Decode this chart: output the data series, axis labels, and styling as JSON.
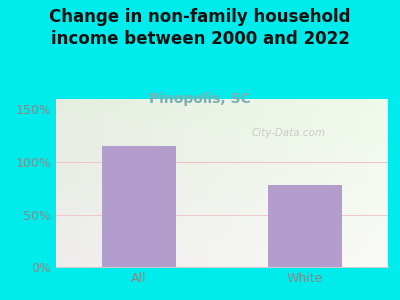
{
  "title": "Change in non-family household\nincome between 2000 and 2022",
  "subtitle": "Pinopolis, SC",
  "categories": [
    "All",
    "White"
  ],
  "values": [
    115,
    78
  ],
  "bar_color": "#b39dcc",
  "figure_bg": "#00ecec",
  "plot_bg_colors": [
    "#e8f5e2",
    "#f0f5ee"
  ],
  "yticks": [
    0,
    50,
    100,
    150
  ],
  "ytick_labels": [
    "0%",
    "50%",
    "100%",
    "150%"
  ],
  "ylim": [
    0,
    160
  ],
  "title_fontsize": 12,
  "subtitle_fontsize": 10,
  "subtitle_color": "#7ab0b0",
  "tick_label_color": "#888888",
  "watermark": "City-Data.com",
  "hline_color": "#f0c0c0",
  "hline_color2": "#f0c8c8"
}
